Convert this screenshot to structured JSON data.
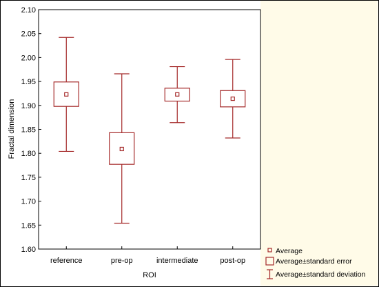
{
  "chart_data": {
    "type": "box",
    "xlabel": "ROI",
    "ylabel": "Fractal dimension",
    "ylim": [
      1.6,
      2.1
    ],
    "yticks": [
      "1.60",
      "1.65",
      "1.70",
      "1.75",
      "1.80",
      "1.85",
      "1.90",
      "1.95",
      "2.00",
      "2.05",
      "2.10"
    ],
    "categories": [
      "reference",
      "pre-op",
      "intermediate",
      "post-op"
    ],
    "series": [
      {
        "category": "reference",
        "mean": 1.923,
        "se_low": 1.898,
        "se_high": 1.949,
        "sd_low": 1.804,
        "sd_high": 2.042
      },
      {
        "category": "pre-op",
        "mean": 1.809,
        "se_low": 1.777,
        "se_high": 1.843,
        "sd_low": 1.654,
        "sd_high": 1.966
      },
      {
        "category": "intermediate",
        "mean": 1.923,
        "se_low": 1.909,
        "se_high": 1.936,
        "sd_low": 1.864,
        "sd_high": 1.981
      },
      {
        "category": "post-op",
        "mean": 1.914,
        "se_low": 1.897,
        "se_high": 1.931,
        "sd_low": 1.832,
        "sd_high": 1.996
      }
    ],
    "grid": false,
    "legend_position": "bottom-right",
    "legend": [
      "Average",
      "Average±standard error",
      "Average±standard deviation"
    ],
    "color": "#a52a2a"
  }
}
